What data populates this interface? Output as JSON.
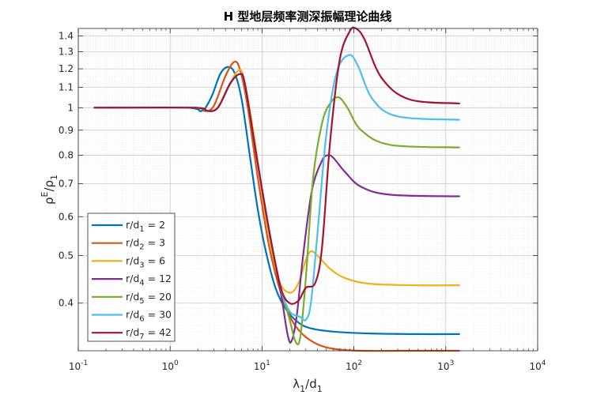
{
  "chart_data": {
    "type": "line",
    "title": "H 型地层频率测深振幅理论曲线",
    "xlabel": "λ1/d1",
    "ylabel": "ρE/ρ1",
    "xscale": "log",
    "yscale": "log",
    "xlim": [
      0.1,
      10000
    ],
    "ylim": [
      0.32,
      1.45
    ],
    "grid": true,
    "minor_grid": true,
    "legend_position": "bottom-left",
    "x_tick_labels": [
      {
        "base": "10",
        "exp": "-1"
      },
      {
        "base": "10",
        "exp": "0"
      },
      {
        "base": "10",
        "exp": "1"
      },
      {
        "base": "10",
        "exp": "2"
      },
      {
        "base": "10",
        "exp": "3"
      },
      {
        "base": "10",
        "exp": "4"
      }
    ],
    "y_tick_labels": [
      "0.4",
      "0.5",
      "0.6",
      "0.7",
      "0.8",
      "0.9",
      "1",
      "1.1",
      "1.2",
      "1.3",
      "1.4"
    ],
    "series": [
      {
        "label_prefix": "r/d",
        "label_sub": "1",
        "label_value": "= 2",
        "color": "#0072BD",
        "points": [
          [
            0.15,
            1.0
          ],
          [
            1.5,
            1.0
          ],
          [
            2.2,
            0.985
          ],
          [
            2.8,
            1.05
          ],
          [
            3.5,
            1.17
          ],
          [
            4.2,
            1.21
          ],
          [
            5,
            1.18
          ],
          [
            6,
            1.04
          ],
          [
            7.5,
            0.78
          ],
          [
            9,
            0.62
          ],
          [
            11,
            0.51
          ],
          [
            14,
            0.43
          ],
          [
            18,
            0.39
          ],
          [
            25,
            0.365
          ],
          [
            35,
            0.355
          ],
          [
            60,
            0.35
          ],
          [
            150,
            0.347
          ],
          [
            500,
            0.346
          ],
          [
            1400,
            0.346
          ]
        ]
      },
      {
        "label_prefix": "r/d",
        "label_sub": "2",
        "label_value": "= 3",
        "color": "#D95319",
        "points": [
          [
            0.15,
            1.0
          ],
          [
            1.7,
            1.0
          ],
          [
            2.4,
            0.985
          ],
          [
            3,
            1.01
          ],
          [
            4,
            1.16
          ],
          [
            5,
            1.24
          ],
          [
            5.8,
            1.19
          ],
          [
            7,
            1.0
          ],
          [
            9,
            0.72
          ],
          [
            12,
            0.52
          ],
          [
            16,
            0.42
          ],
          [
            21,
            0.37
          ],
          [
            28,
            0.345
          ],
          [
            40,
            0.33
          ],
          [
            60,
            0.323
          ],
          [
            120,
            0.32
          ],
          [
            400,
            0.32
          ],
          [
            1400,
            0.32
          ]
        ]
      },
      {
        "label_prefix": "r/d",
        "label_sub": "3",
        "label_value": "= 6",
        "color": "#EDB120",
        "points": [
          [
            0.15,
            1.0
          ],
          [
            1.8,
            1.0
          ],
          [
            2.5,
            0.985
          ],
          [
            3.3,
            1.0
          ],
          [
            4.5,
            1.12
          ],
          [
            5.5,
            1.19
          ],
          [
            6.3,
            1.15
          ],
          [
            8,
            0.9
          ],
          [
            11,
            0.6
          ],
          [
            15,
            0.45
          ],
          [
            20,
            0.42
          ],
          [
            25,
            0.44
          ],
          [
            30,
            0.49
          ],
          [
            34,
            0.51
          ],
          [
            40,
            0.5
          ],
          [
            55,
            0.47
          ],
          [
            80,
            0.45
          ],
          [
            150,
            0.438
          ],
          [
            500,
            0.435
          ],
          [
            1400,
            0.435
          ]
        ]
      },
      {
        "label_prefix": "r/d",
        "label_sub": "4",
        "label_value": "= 12",
        "color": "#7E2F8E",
        "points": [
          [
            0.15,
            1.0
          ],
          [
            1.8,
            1.0
          ],
          [
            2.5,
            0.985
          ],
          [
            3.3,
            1.0
          ],
          [
            4.5,
            1.12
          ],
          [
            5.7,
            1.17
          ],
          [
            6.5,
            1.12
          ],
          [
            8.5,
            0.82
          ],
          [
            12,
            0.56
          ],
          [
            16,
            0.42
          ],
          [
            19,
            0.345
          ],
          [
            21,
            0.335
          ],
          [
            24,
            0.38
          ],
          [
            28,
            0.5
          ],
          [
            35,
            0.68
          ],
          [
            45,
            0.78
          ],
          [
            52,
            0.8
          ],
          [
            60,
            0.79
          ],
          [
            80,
            0.74
          ],
          [
            120,
            0.69
          ],
          [
            250,
            0.665
          ],
          [
            1400,
            0.66
          ]
        ]
      },
      {
        "label_prefix": "r/d",
        "label_sub": "5",
        "label_value": "= 20",
        "color": "#77AC30",
        "points": [
          [
            0.15,
            1.0
          ],
          [
            1.8,
            1.0
          ],
          [
            2.5,
            0.985
          ],
          [
            3.3,
            1.0
          ],
          [
            4.5,
            1.12
          ],
          [
            5.7,
            1.17
          ],
          [
            6.5,
            1.12
          ],
          [
            8.5,
            0.82
          ],
          [
            12,
            0.56
          ],
          [
            16,
            0.43
          ],
          [
            20,
            0.37
          ],
          [
            23,
            0.335
          ],
          [
            26,
            0.34
          ],
          [
            30,
            0.45
          ],
          [
            36,
            0.72
          ],
          [
            45,
            0.93
          ],
          [
            55,
            1.02
          ],
          [
            68,
            1.05
          ],
          [
            85,
            1.0
          ],
          [
            120,
            0.9
          ],
          [
            250,
            0.84
          ],
          [
            1400,
            0.83
          ]
        ]
      },
      {
        "label_prefix": "r/d",
        "label_sub": "6",
        "label_value": "= 30",
        "color": "#4DBEEE",
        "points": [
          [
            0.15,
            1.0
          ],
          [
            1.8,
            1.0
          ],
          [
            2.5,
            0.985
          ],
          [
            3.3,
            1.0
          ],
          [
            4.5,
            1.12
          ],
          [
            5.7,
            1.17
          ],
          [
            6.5,
            1.12
          ],
          [
            8.5,
            0.82
          ],
          [
            12,
            0.56
          ],
          [
            16,
            0.43
          ],
          [
            20,
            0.385
          ],
          [
            26,
            0.375
          ],
          [
            30,
            0.37
          ],
          [
            34,
            0.4
          ],
          [
            40,
            0.55
          ],
          [
            50,
            0.88
          ],
          [
            65,
            1.18
          ],
          [
            88,
            1.28
          ],
          [
            110,
            1.22
          ],
          [
            160,
            1.04
          ],
          [
            300,
            0.96
          ],
          [
            1400,
            0.945
          ]
        ]
      },
      {
        "label_prefix": "r/d",
        "label_sub": "7",
        "label_value": "= 42",
        "color": "#A2142F",
        "points": [
          [
            0.15,
            1.0
          ],
          [
            1.8,
            1.0
          ],
          [
            2.5,
            0.985
          ],
          [
            3.3,
            1.0
          ],
          [
            4.5,
            1.12
          ],
          [
            5.7,
            1.17
          ],
          [
            6.5,
            1.12
          ],
          [
            8.5,
            0.82
          ],
          [
            12,
            0.56
          ],
          [
            16,
            0.43
          ],
          [
            20,
            0.4
          ],
          [
            25,
            0.405
          ],
          [
            30,
            0.43
          ],
          [
            38,
            0.44
          ],
          [
            45,
            0.52
          ],
          [
            55,
            0.85
          ],
          [
            70,
            1.25
          ],
          [
            90,
            1.43
          ],
          [
            105,
            1.45
          ],
          [
            130,
            1.38
          ],
          [
            200,
            1.15
          ],
          [
            400,
            1.04
          ],
          [
            1400,
            1.02
          ]
        ]
      }
    ]
  }
}
